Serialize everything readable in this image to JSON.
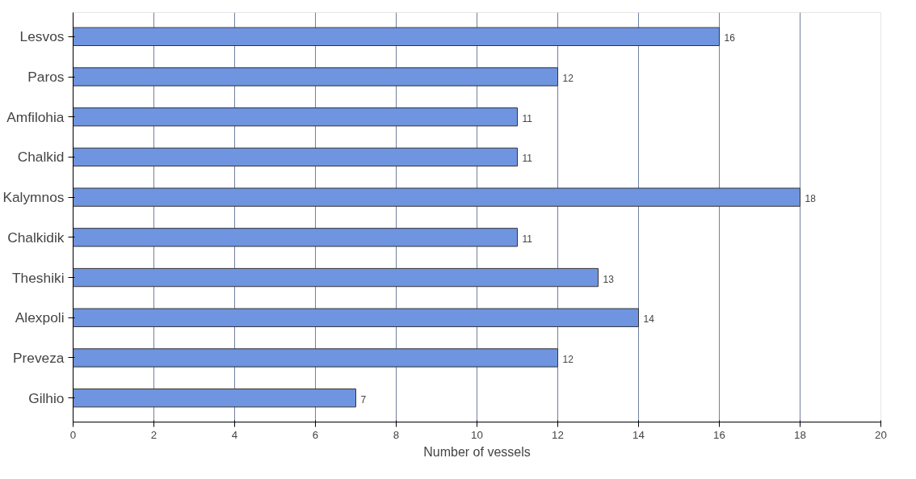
{
  "chart_data": {
    "type": "bar",
    "orientation": "horizontal",
    "xlabel": "Number of vessels",
    "categories": [
      "Lesvos",
      "Paros",
      "Amfilohia",
      "Chalkid",
      "Kalymnos",
      "Chalkidik",
      "Theshiki",
      "Alexpoli",
      "Preveza",
      "Gilhio"
    ],
    "values": [
      16,
      12,
      11,
      11,
      18,
      11,
      13,
      14,
      12,
      7
    ],
    "color": "#6f94e0",
    "xlim": [
      0,
      20
    ],
    "xticks": [
      0,
      2,
      4,
      6,
      8,
      10,
      12,
      14,
      16,
      18,
      20
    ],
    "grid": "x",
    "data_labels": true
  }
}
